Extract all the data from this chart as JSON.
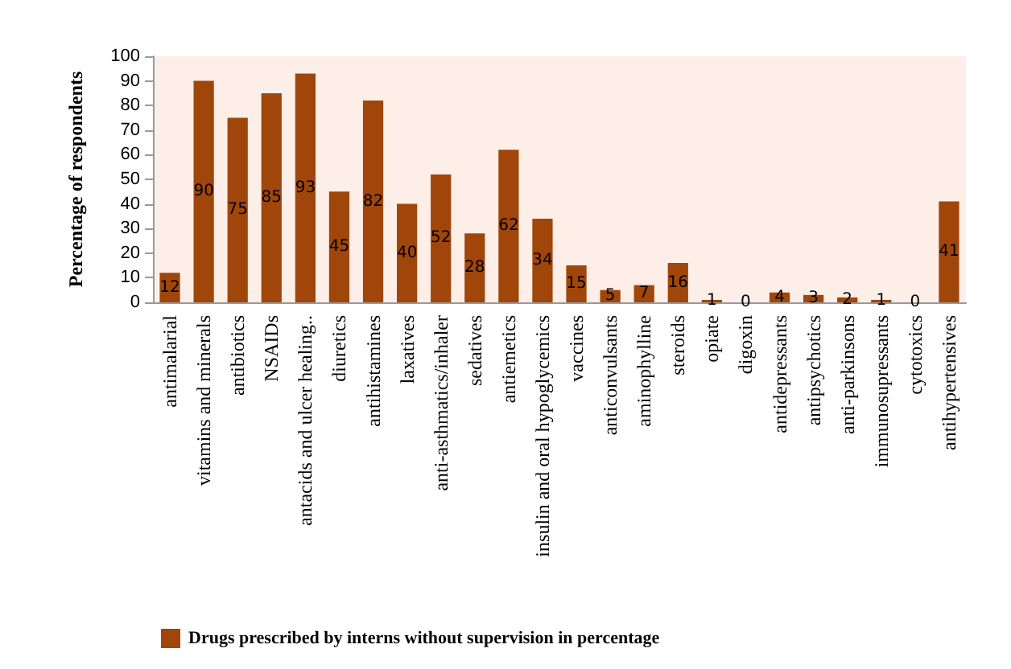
{
  "chart_data": {
    "type": "bar",
    "ylabel": "Percentage of respondents",
    "categories": [
      "antimalarial",
      "vitamins and minerals",
      "antibiotics",
      "NSAIDs",
      "antacids and ulcer healing..",
      "diuretics",
      "antihistamines",
      "laxatives",
      "anti-asthmatics/inhaler",
      "sedatives",
      "antiemetics",
      "insulin and oral hypoglycemics",
      "vaccines",
      "anticonvulsants",
      "aminophylline",
      "steroids",
      "opiate",
      "digoxin",
      "antidepressants",
      "antipsychotics",
      "anti-parkinsons",
      "immunosupressants",
      "cytotoxics",
      "antihypertensives"
    ],
    "series": [
      {
        "name": "Drugs prescribed by interns without supervision in percentage",
        "color": "#a0460a",
        "values": [
          12,
          90,
          75,
          85,
          93,
          45,
          82,
          40,
          52,
          28,
          62,
          34,
          15,
          5,
          7,
          16,
          1,
          0,
          4,
          3,
          2,
          1,
          0,
          41
        ]
      }
    ],
    "ylim": [
      0,
      100
    ],
    "yticks": [
      0,
      10,
      20,
      30,
      40,
      50,
      60,
      70,
      80,
      90,
      100
    ],
    "grid": false,
    "data_labels": true,
    "legend": "bottom left"
  }
}
